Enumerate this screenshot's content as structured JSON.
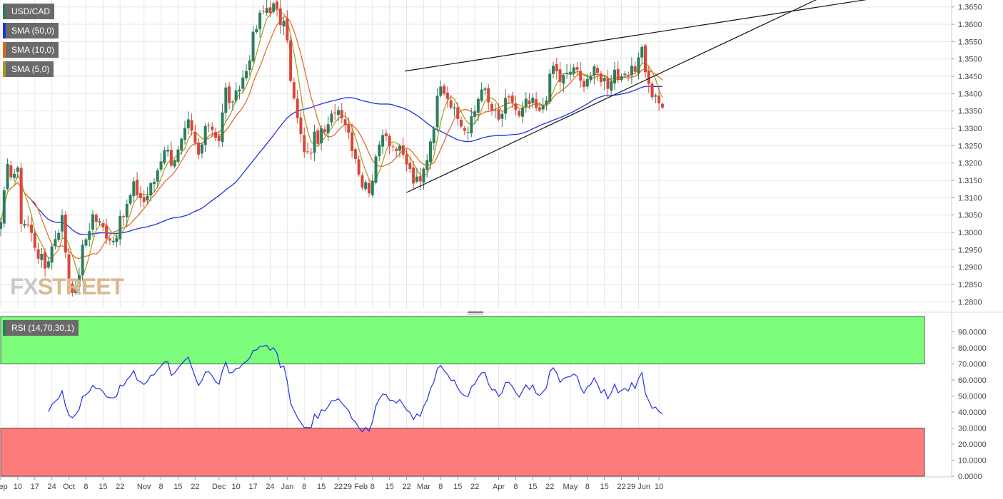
{
  "instrument": "USD/CAD",
  "legend": [
    {
      "label": "USD/CAD",
      "color": "#2e7d5b"
    },
    {
      "label": "SMA (50,0)",
      "color": "#2131e8"
    },
    {
      "label": "SMA (10,0)",
      "color": "#e0661d"
    },
    {
      "label": "SMA (5,0)",
      "color": "#a89a1a"
    }
  ],
  "watermark": {
    "part1": "FX",
    "part2": "STREET"
  },
  "colors": {
    "up": "#2e7d5b",
    "down": "#d9473a",
    "sma50": "#2131e8",
    "sma10": "#e0661d",
    "sma5": "#a89a1a",
    "rsi": "#2131e8",
    "overbought": "#7cfd7c",
    "oversold": "#fd7b7b",
    "grid": "#e6e6e6"
  },
  "chart_data": [
    {
      "type": "candlestick",
      "title": "USD/CAD",
      "ylim": [
        1.278,
        1.367
      ],
      "y_ticks": [
        "1.3650",
        "1.3600",
        "1.3550",
        "1.3500",
        "1.3450",
        "1.3400",
        "1.3350",
        "1.3300",
        "1.3250",
        "1.3200",
        "1.3150",
        "1.3100",
        "1.3050",
        "1.3000",
        "1.2950",
        "1.2900",
        "1.2850",
        "1.2800"
      ],
      "x_ticks": [
        "Sep",
        "10",
        "17",
        "24",
        "Oct",
        "8",
        "15",
        "22",
        "Nov",
        "8",
        "15",
        "22",
        "Dec",
        "10",
        "17",
        "24",
        "Jan",
        "8",
        "15",
        "22",
        "29 Feb",
        "8",
        "15",
        "22",
        "Mar",
        "8",
        "15",
        "22",
        "Apr",
        "8",
        "15",
        "22",
        "May",
        "8",
        "15",
        "22",
        "29 Jun",
        "10"
      ],
      "x_range": [
        0,
        279
      ],
      "x_tick_positions": [
        0,
        5,
        10,
        15,
        20,
        25,
        30,
        35,
        42,
        47,
        52,
        57,
        64,
        69,
        74,
        79,
        84,
        89,
        94,
        99,
        104,
        109,
        114,
        119,
        124,
        129,
        134,
        139,
        146,
        151,
        156,
        161,
        167,
        172,
        177,
        182,
        187,
        193
      ],
      "anchors": [
        [
          0,
          1.303
        ],
        [
          2,
          1.318
        ],
        [
          5,
          1.317
        ],
        [
          6,
          1.304
        ],
        [
          8,
          1.302
        ],
        [
          11,
          1.294
        ],
        [
          13,
          1.29
        ],
        [
          16,
          1.299
        ],
        [
          18,
          1.304
        ],
        [
          20,
          1.286
        ],
        [
          22,
          1.283
        ],
        [
          24,
          1.295
        ],
        [
          27,
          1.305
        ],
        [
          30,
          1.301
        ],
        [
          33,
          1.298
        ],
        [
          36,
          1.305
        ],
        [
          39,
          1.313
        ],
        [
          42,
          1.309
        ],
        [
          45,
          1.315
        ],
        [
          48,
          1.325
        ],
        [
          50,
          1.321
        ],
        [
          52,
          1.323
        ],
        [
          55,
          1.331
        ],
        [
          58,
          1.322
        ],
        [
          61,
          1.332
        ],
        [
          64,
          1.327
        ],
        [
          66,
          1.341
        ],
        [
          68,
          1.336
        ],
        [
          70,
          1.342
        ],
        [
          72,
          1.347
        ],
        [
          74,
          1.356
        ],
        [
          76,
          1.362
        ],
        [
          78,
          1.365
        ],
        [
          80,
          1.365
        ],
        [
          82,
          1.361
        ],
        [
          84,
          1.357
        ],
        [
          85,
          1.343
        ],
        [
          86,
          1.338
        ],
        [
          88,
          1.327
        ],
        [
          90,
          1.322
        ],
        [
          92,
          1.327
        ],
        [
          94,
          1.328
        ],
        [
          96,
          1.33
        ],
        [
          98,
          1.336
        ],
        [
          100,
          1.335
        ],
        [
          102,
          1.329
        ],
        [
          104,
          1.322
        ],
        [
          106,
          1.314
        ],
        [
          108,
          1.313
        ],
        [
          110,
          1.32
        ],
        [
          112,
          1.33
        ],
        [
          115,
          1.325
        ],
        [
          117,
          1.323
        ],
        [
          119,
          1.32
        ],
        [
          121,
          1.315
        ],
        [
          123,
          1.314
        ],
        [
          125,
          1.322
        ],
        [
          127,
          1.332
        ],
        [
          129,
          1.344
        ],
        [
          131,
          1.34
        ],
        [
          133,
          1.334
        ],
        [
          135,
          1.331
        ],
        [
          137,
          1.329
        ],
        [
          139,
          1.335
        ],
        [
          141,
          1.343
        ],
        [
          143,
          1.337
        ],
        [
          146,
          1.332
        ],
        [
          148,
          1.337
        ],
        [
          150,
          1.338
        ],
        [
          152,
          1.333
        ],
        [
          154,
          1.337
        ],
        [
          156,
          1.337
        ],
        [
          158,
          1.334
        ],
        [
          160,
          1.34
        ],
        [
          162,
          1.348
        ],
        [
          164,
          1.344
        ],
        [
          166,
          1.345
        ],
        [
          168,
          1.348
        ],
        [
          170,
          1.343
        ],
        [
          172,
          1.345
        ],
        [
          174,
          1.346
        ],
        [
          176,
          1.345
        ],
        [
          178,
          1.343
        ],
        [
          180,
          1.347
        ],
        [
          182,
          1.343
        ],
        [
          184,
          1.345
        ],
        [
          186,
          1.347
        ],
        [
          187,
          1.352
        ],
        [
          188,
          1.353
        ],
        [
          190,
          1.342
        ],
        [
          192,
          1.338
        ],
        [
          194,
          1.336
        ]
      ],
      "series": [
        {
          "name": "SMA (50,0)",
          "period": 50
        },
        {
          "name": "SMA (10,0)",
          "period": 10
        },
        {
          "name": "SMA (5,0)",
          "period": 5
        }
      ],
      "trendlines": [
        {
          "from": [
            118.5,
            1.3465
          ],
          "to": [
            194,
            1.358
          ]
        },
        {
          "from": [
            119,
            1.3115
          ],
          "to": [
            194,
            1.3462
          ]
        }
      ]
    },
    {
      "type": "line",
      "title": "RSI (14,70,30,1)",
      "series_name": "RSI (14,70,30,1)",
      "ylim": [
        0,
        100
      ],
      "y_ticks": [
        "90.0000",
        "80.0000",
        "70.0000",
        "60.0000",
        "50.0000",
        "40.0000",
        "30.0000",
        "20.0000",
        "10.0000",
        "0.0000"
      ],
      "overbought": 70,
      "oversold": 30
    }
  ]
}
